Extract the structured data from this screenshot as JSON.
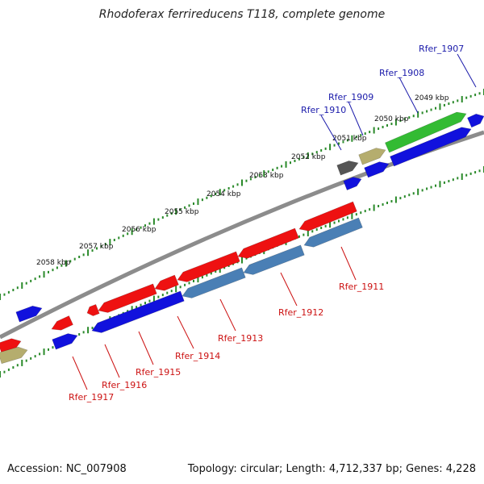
{
  "title": "Rhodoferax ferrireducens T118, complete genome",
  "accession": "Accession: NC_007908",
  "summary": "Topology: circular; Length: 4,712,337 bp; Genes: 4,228",
  "colors": {
    "backbone": "#8c8c8c",
    "tick": "#2a8a2a",
    "label_forward": "#1a1aaa",
    "label_reverse": "#cc1111",
    "gene_red": "#ee1111",
    "gene_blue": "#1111dd",
    "gene_steel": "#4a7fb5",
    "gene_green": "#33bb33",
    "gene_khaki": "#b5ad6e",
    "gene_gray": "#555555"
  },
  "kbp_labels": [
    {
      "id": "k2049",
      "text": "2049 kbp"
    },
    {
      "id": "k2050",
      "text": "2050 kbp"
    },
    {
      "id": "k2051",
      "text": "2051 kbp"
    },
    {
      "id": "k2052",
      "text": "2052 kbp"
    },
    {
      "id": "k2053",
      "text": "2053 kbp"
    },
    {
      "id": "k2054",
      "text": "2054 kbp"
    },
    {
      "id": "k2055",
      "text": "2055 kbp"
    },
    {
      "id": "k2056",
      "text": "2056 kbp"
    },
    {
      "id": "k2057",
      "text": "2057 kbp"
    },
    {
      "id": "k2058",
      "text": "2058 kbp"
    }
  ],
  "forward_labels": [
    {
      "id": "f1907",
      "text": "Rfer_1907"
    },
    {
      "id": "f1908",
      "text": "Rfer_1908"
    },
    {
      "id": "f1909",
      "text": "Rfer_1909"
    },
    {
      "id": "f1910",
      "text": "Rfer_1910"
    }
  ],
  "reverse_labels": [
    {
      "id": "r1911",
      "text": "Rfer_1911"
    },
    {
      "id": "r1912",
      "text": "Rfer_1912"
    },
    {
      "id": "r1913",
      "text": "Rfer_1913"
    },
    {
      "id": "r1914",
      "text": "Rfer_1914"
    },
    {
      "id": "r1915",
      "text": "Rfer_1915"
    },
    {
      "id": "r1916",
      "text": "Rfer_1916"
    },
    {
      "id": "r1917",
      "text": "Rfer_1917"
    }
  ]
}
